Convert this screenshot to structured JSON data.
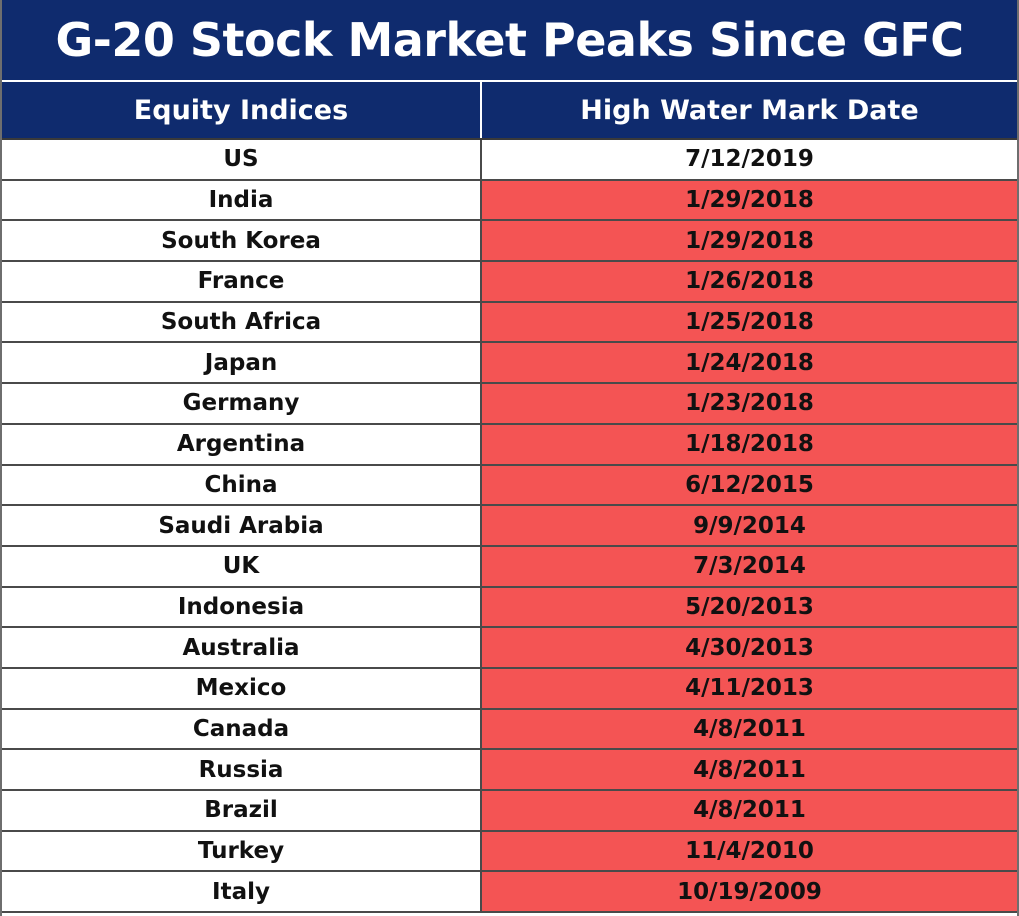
{
  "title": "G-20 Stock Market Peaks Since GFC",
  "columns": [
    "Equity Indices",
    "High Water Mark Date"
  ],
  "colors": {
    "header_bg": "#0f2b6e",
    "highlight": "#f45454",
    "normal": "#ffffff"
  },
  "rows": [
    {
      "index": "US",
      "date": "7/12/2019",
      "highlighted": false
    },
    {
      "index": "India",
      "date": "1/29/2018",
      "highlighted": true
    },
    {
      "index": "South Korea",
      "date": "1/29/2018",
      "highlighted": true
    },
    {
      "index": "France",
      "date": "1/26/2018",
      "highlighted": true
    },
    {
      "index": "South Africa",
      "date": "1/25/2018",
      "highlighted": true
    },
    {
      "index": "Japan",
      "date": "1/24/2018",
      "highlighted": true
    },
    {
      "index": "Germany",
      "date": "1/23/2018",
      "highlighted": true
    },
    {
      "index": "Argentina",
      "date": "1/18/2018",
      "highlighted": true
    },
    {
      "index": "China",
      "date": "6/12/2015",
      "highlighted": true
    },
    {
      "index": "Saudi Arabia",
      "date": "9/9/2014",
      "highlighted": true
    },
    {
      "index": "UK",
      "date": "7/3/2014",
      "highlighted": true
    },
    {
      "index": "Indonesia",
      "date": "5/20/2013",
      "highlighted": true
    },
    {
      "index": "Australia",
      "date": "4/30/2013",
      "highlighted": true
    },
    {
      "index": "Mexico",
      "date": "4/11/2013",
      "highlighted": true
    },
    {
      "index": "Canada",
      "date": "4/8/2011",
      "highlighted": true
    },
    {
      "index": "Russia",
      "date": "4/8/2011",
      "highlighted": true
    },
    {
      "index": "Brazil",
      "date": "4/8/2011",
      "highlighted": true
    },
    {
      "index": "Turkey",
      "date": "11/4/2010",
      "highlighted": true
    },
    {
      "index": "Italy",
      "date": "10/19/2009",
      "highlighted": true
    }
  ]
}
